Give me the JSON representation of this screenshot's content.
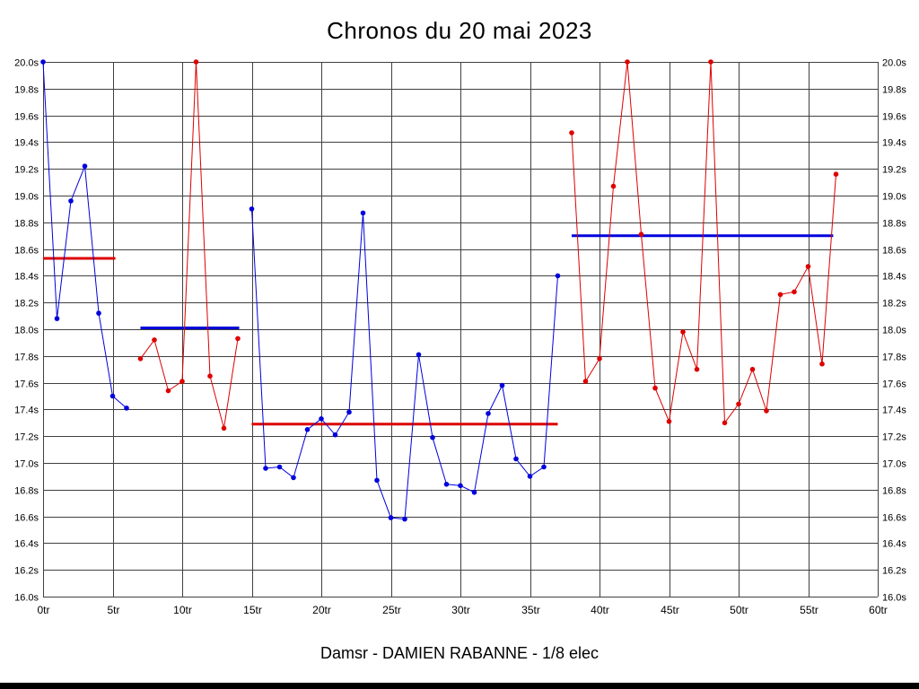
{
  "title": "Chronos du 20 mai 2023",
  "subtitle": "Damsr - DAMIEN RABANNE - 1/8 elec",
  "colors": {
    "blue": "#0000dd",
    "red": "#dd0000",
    "grid": "#404040",
    "text": "#000000",
    "background": "#ffffff"
  },
  "chart_data": {
    "type": "line",
    "title": "Chronos du 20 mai 2023",
    "caption": "Damsr - DAMIEN RABANNE - 1/8 elec",
    "x_unit": "tr",
    "y_unit": "s",
    "xlim": [
      0,
      60
    ],
    "ylim": [
      16.0,
      20.0
    ],
    "x_step": 5,
    "y_step": 0.2,
    "grid": true,
    "legend": "none",
    "x_ticks": [
      "0tr",
      "5tr",
      "10tr",
      "15tr",
      "20tr",
      "25tr",
      "30tr",
      "35tr",
      "40tr",
      "45tr",
      "50tr",
      "55tr",
      "60tr"
    ],
    "y_ticks": [
      "20.0s",
      "19.8s",
      "19.6s",
      "19.4s",
      "19.2s",
      "19.0s",
      "18.8s",
      "18.6s",
      "18.4s",
      "18.2s",
      "18.0s",
      "17.8s",
      "17.6s",
      "17.4s",
      "17.2s",
      "17.0s",
      "16.8s",
      "16.6s",
      "16.4s",
      "16.2s",
      "16.0s"
    ],
    "series": [
      {
        "name": "run-1",
        "color": "blue",
        "start_lap": 0,
        "values": [
          20.0,
          18.08,
          18.96,
          19.22,
          18.12,
          17.5,
          17.41
        ]
      },
      {
        "name": "run-2",
        "color": "red",
        "start_lap": 7,
        "values": [
          17.78,
          17.92,
          17.54,
          17.61,
          20.0,
          17.65,
          17.26,
          17.93
        ]
      },
      {
        "name": "run-3",
        "color": "blue",
        "start_lap": 15,
        "values": [
          18.9,
          16.96,
          16.97,
          16.89,
          17.25,
          17.33,
          17.21,
          17.38,
          18.87,
          16.87,
          16.59,
          16.58,
          17.81,
          17.19,
          16.84,
          16.83,
          16.78,
          17.37,
          17.58,
          17.03,
          16.9,
          16.97,
          18.4
        ]
      },
      {
        "name": "run-4",
        "color": "red",
        "start_lap": 38,
        "values": [
          19.47,
          17.61,
          17.78,
          19.07,
          20.0,
          18.71,
          17.56,
          17.31,
          17.98,
          17.7,
          20.0,
          17.3,
          17.44,
          17.7,
          17.39,
          18.26,
          18.28,
          18.47,
          17.74,
          19.16
        ]
      }
    ],
    "avg_lines": [
      {
        "name": "average-run-1",
        "color": "red",
        "value": 18.53,
        "from": 0,
        "to": 5.2
      },
      {
        "name": "average-run-2",
        "color": "blue",
        "value": 18.01,
        "from": 7,
        "to": 14.1
      },
      {
        "name": "average-run-3",
        "color": "red",
        "value": 17.29,
        "from": 15,
        "to": 37
      },
      {
        "name": "average-run-4",
        "color": "blue",
        "value": 18.7,
        "from": 38,
        "to": 56.8
      }
    ]
  }
}
